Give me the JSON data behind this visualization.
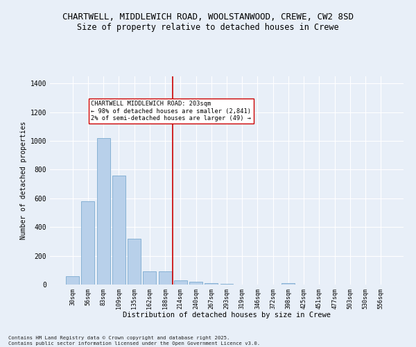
{
  "title1": "CHARTWELL, MIDDLEWICH ROAD, WOOLSTANWOOD, CREWE, CW2 8SD",
  "title2": "Size of property relative to detached houses in Crewe",
  "xlabel": "Distribution of detached houses by size in Crewe",
  "ylabel": "Number of detached properties",
  "categories": [
    "30sqm",
    "56sqm",
    "83sqm",
    "109sqm",
    "135sqm",
    "162sqm",
    "188sqm",
    "214sqm",
    "240sqm",
    "267sqm",
    "293sqm",
    "319sqm",
    "346sqm",
    "372sqm",
    "398sqm",
    "425sqm",
    "451sqm",
    "477sqm",
    "503sqm",
    "530sqm",
    "556sqm"
  ],
  "values": [
    60,
    580,
    1020,
    760,
    320,
    90,
    90,
    30,
    20,
    10,
    7,
    0,
    0,
    0,
    10,
    0,
    0,
    0,
    0,
    0,
    0
  ],
  "bar_color": "#b8d0ea",
  "bar_edge_color": "#6a9fc8",
  "background_color": "#e8eff8",
  "grid_color": "#ffffff",
  "vline_color": "#cc0000",
  "annotation_text": "CHARTWELL MIDDLEWICH ROAD: 203sqm\n← 98% of detached houses are smaller (2,841)\n2% of semi-detached houses are larger (49) →",
  "annotation_box_color": "#ffffff",
  "annotation_box_edge": "#cc0000",
  "ylim": [
    0,
    1450
  ],
  "yticks": [
    0,
    200,
    400,
    600,
    800,
    1000,
    1200,
    1400
  ],
  "footnote": "Contains HM Land Registry data © Crown copyright and database right 2025.\nContains public sector information licensed under the Open Government Licence v3.0.",
  "title_fontsize": 9,
  "subtitle_fontsize": 8.5,
  "bar_width": 0.85,
  "vline_index": 7
}
